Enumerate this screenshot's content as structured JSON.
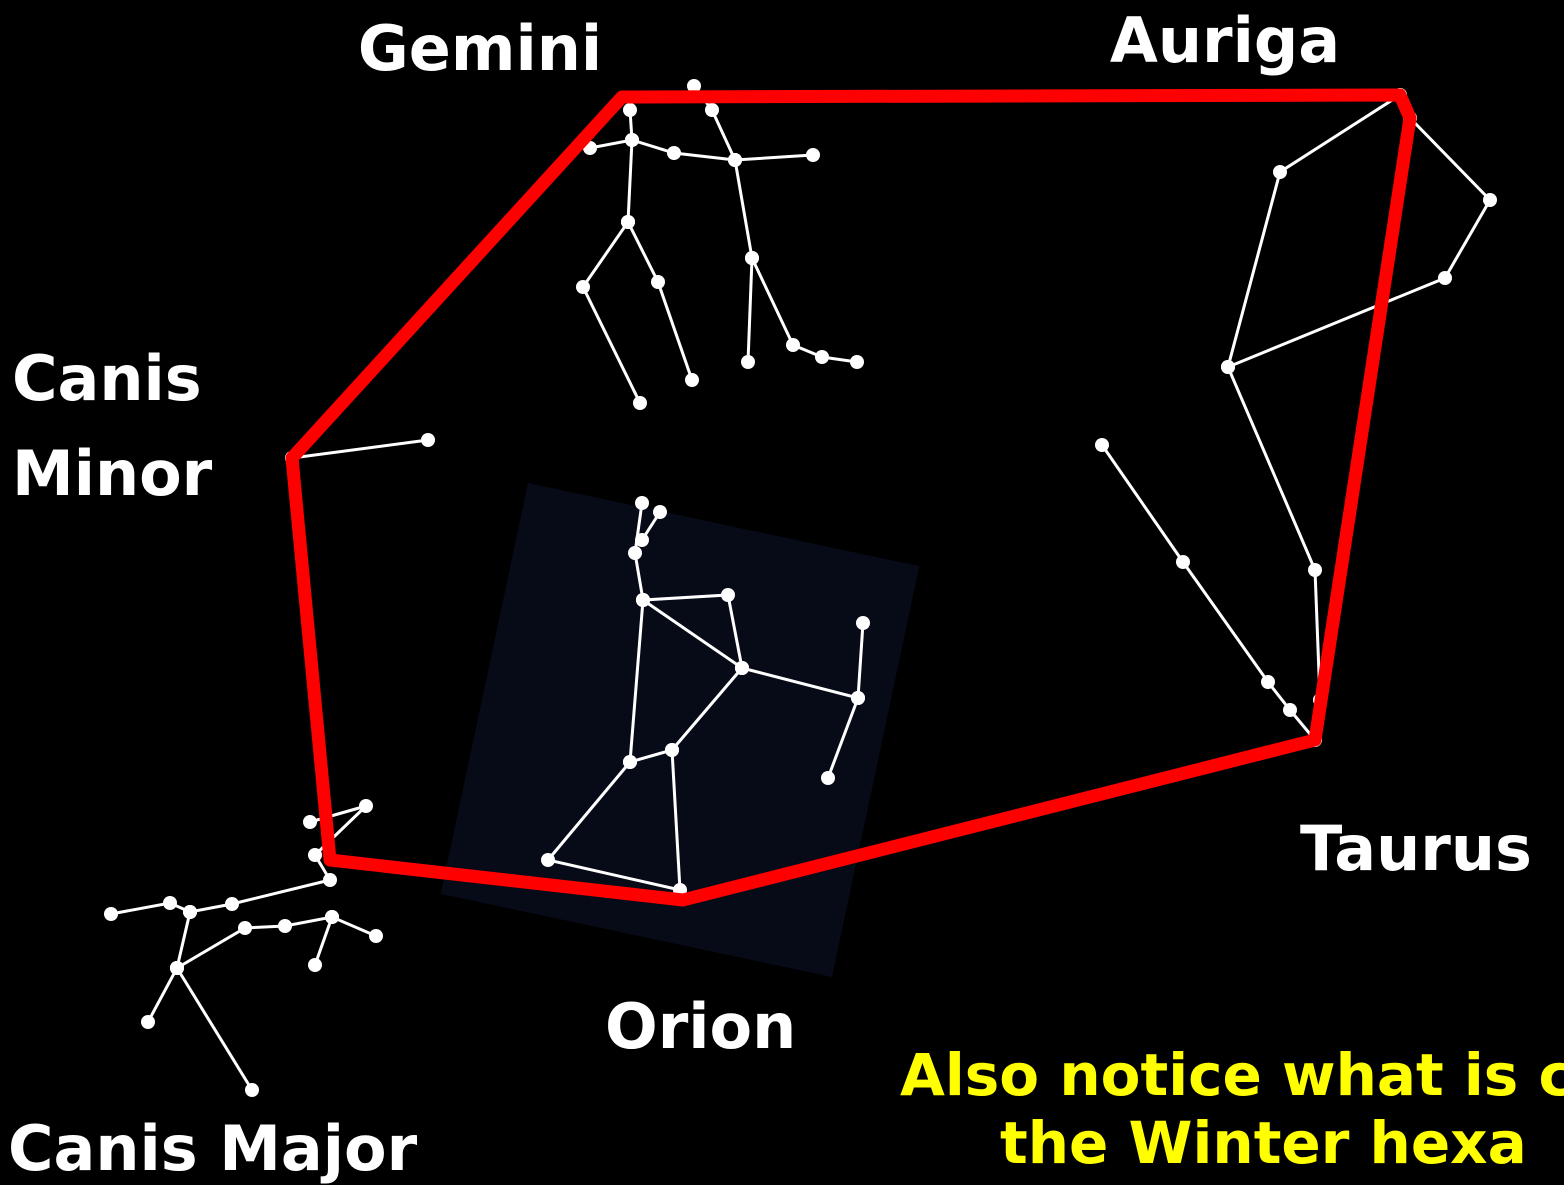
{
  "labels": {
    "gemini": "Gemini",
    "auriga": "Auriga",
    "canis_minor": [
      "Canis",
      "Minor"
    ],
    "taurus": "Taurus",
    "orion": "Orion",
    "canis_major": "Canis Major"
  },
  "note": [
    "Also notice what is ca",
    "the Winter hexa"
  ]
}
